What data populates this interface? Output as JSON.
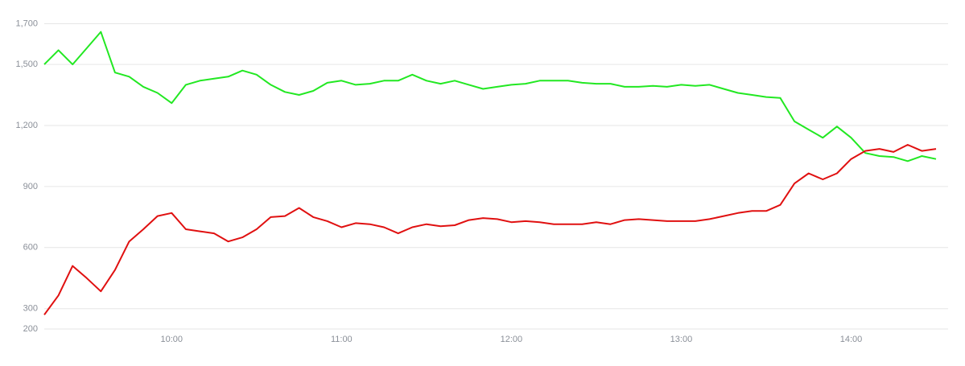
{
  "chart_data": {
    "type": "line",
    "x": [
      "09:15",
      "09:20",
      "09:25",
      "09:30",
      "09:35",
      "09:40",
      "09:45",
      "09:50",
      "09:55",
      "10:00",
      "10:05",
      "10:10",
      "10:15",
      "10:20",
      "10:25",
      "10:30",
      "10:35",
      "10:40",
      "10:45",
      "10:50",
      "10:55",
      "11:00",
      "11:05",
      "11:10",
      "11:15",
      "11:20",
      "11:25",
      "11:30",
      "11:35",
      "11:40",
      "11:45",
      "11:50",
      "11:55",
      "12:00",
      "12:05",
      "12:10",
      "12:15",
      "12:20",
      "12:25",
      "12:30",
      "12:35",
      "12:40",
      "12:45",
      "12:50",
      "12:55",
      "13:00",
      "13:05",
      "13:10",
      "13:15",
      "13:20",
      "13:25",
      "13:30",
      "13:35",
      "13:40",
      "13:45",
      "13:50",
      "13:55",
      "14:00",
      "14:05",
      "14:10",
      "14:15",
      "14:20",
      "14:25",
      "14:30"
    ],
    "series": [
      {
        "color": "#22e822",
        "values": [
          1500,
          1570,
          1500,
          1580,
          1660,
          1460,
          1440,
          1390,
          1360,
          1310,
          1400,
          1420,
          1430,
          1440,
          1470,
          1450,
          1400,
          1365,
          1350,
          1370,
          1410,
          1420,
          1400,
          1405,
          1420,
          1420,
          1450,
          1420,
          1405,
          1420,
          1400,
          1380,
          1390,
          1400,
          1405,
          1420,
          1420,
          1420,
          1410,
          1405,
          1405,
          1390,
          1390,
          1395,
          1390,
          1400,
          1395,
          1400,
          1380,
          1360,
          1350,
          1340,
          1335,
          1220,
          1180,
          1140,
          1195,
          1140,
          1065,
          1050,
          1045,
          1025,
          1050,
          1035
        ]
      },
      {
        "color": "#e01010",
        "values": [
          270,
          365,
          510,
          450,
          385,
          490,
          630,
          690,
          755,
          770,
          690,
          680,
          670,
          630,
          650,
          690,
          750,
          755,
          795,
          750,
          730,
          700,
          720,
          715,
          700,
          670,
          700,
          715,
          705,
          710,
          735,
          745,
          740,
          725,
          730,
          725,
          715,
          715,
          715,
          725,
          715,
          735,
          740,
          735,
          730,
          730,
          730,
          740,
          755,
          770,
          780,
          780,
          810,
          915,
          965,
          935,
          965,
          1035,
          1075,
          1085,
          1070,
          1105,
          1075,
          1085
        ]
      }
    ],
    "xlim": [
      "09:15",
      "14:30"
    ],
    "xticks": [
      "10:00",
      "11:00",
      "12:00",
      "13:00",
      "14:00"
    ],
    "ylim": [
      200,
      1700
    ],
    "yticks": [
      200,
      300,
      600,
      900,
      {
        "value": 1200,
        "label": "1,200"
      },
      {
        "value": 1500,
        "label": "1,500"
      },
      {
        "value": 1700,
        "label": "1,700"
      }
    ],
    "grid": true
  }
}
